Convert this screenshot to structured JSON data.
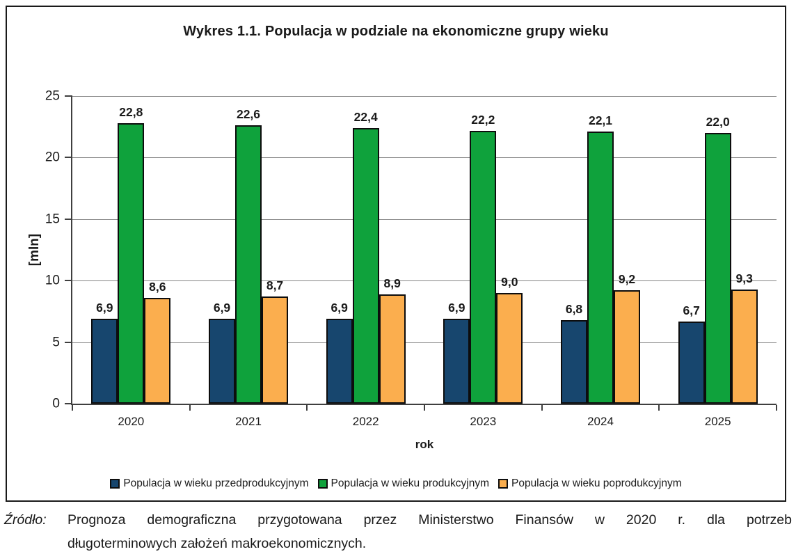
{
  "title": "Wykres 1.1. Populacja  w podziale na ekonomiczne grupy wieku",
  "chart_data": {
    "type": "bar",
    "categories": [
      "2020",
      "2021",
      "2022",
      "2023",
      "2024",
      "2025"
    ],
    "series": [
      {
        "name": "Populacja w wieku przedprodukcyjnym",
        "color": "#17466E",
        "values": [
          6.9,
          6.9,
          6.9,
          6.9,
          6.8,
          6.7
        ],
        "labels": [
          "6,9",
          "6,9",
          "6,9",
          "6,9",
          "6,8",
          "6,7"
        ]
      },
      {
        "name": "Populacja w wieku produkcyjnym",
        "color": "#0FA23C",
        "values": [
          22.8,
          22.6,
          22.4,
          22.2,
          22.1,
          22.0
        ],
        "labels": [
          "22,8",
          "22,6",
          "22,4",
          "22,2",
          "22,1",
          "22,0"
        ]
      },
      {
        "name": "Populacja w wieku poprodukcyjnym",
        "color": "#FBAE4E",
        "values": [
          8.6,
          8.7,
          8.9,
          9.0,
          9.2,
          9.3
        ],
        "labels": [
          "8,6",
          "8,7",
          "8,9",
          "9,0",
          "9,2",
          "9,3"
        ]
      }
    ],
    "xlabel": "rok",
    "ylabel": "[mln]",
    "ylim": [
      0,
      25
    ],
    "yticks": [
      0,
      5,
      10,
      15,
      20,
      25
    ],
    "grid": true,
    "legend_position": "bottom"
  },
  "source": {
    "label": "Źródło:",
    "line1": "Prognoza demograficzna przygotowana przez Ministerstwo Finansów w 2020 r. dla potrzeb",
    "line2": "długoterminowych założeń makroekonomicznych."
  }
}
